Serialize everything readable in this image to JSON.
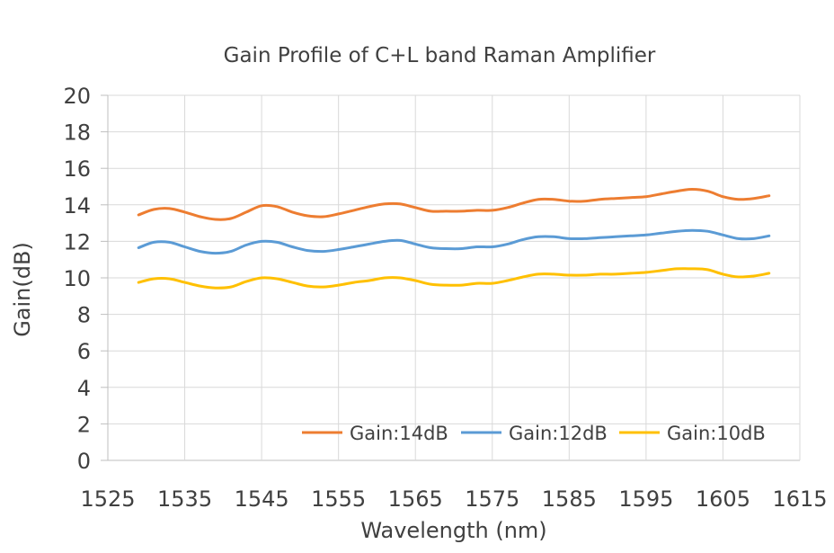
{
  "chart_data": {
    "type": "line",
    "title": "Gain Profile of C+L band Raman Amplifier",
    "xlabel": "Wavelength (nm)",
    "ylabel": "Gain(dB)",
    "xlim": [
      1525,
      1615
    ],
    "ylim": [
      0,
      20
    ],
    "x_ticks": [
      1525,
      1535,
      1545,
      1555,
      1565,
      1575,
      1585,
      1595,
      1605,
      1615
    ],
    "y_ticks": [
      0,
      2,
      4,
      6,
      8,
      10,
      12,
      14,
      16,
      18,
      20
    ],
    "grid": true,
    "legend_position": "bottom-right inside",
    "x": [
      1529,
      1531,
      1533,
      1535,
      1537,
      1539,
      1541,
      1543,
      1545,
      1547,
      1549,
      1551,
      1553,
      1555,
      1557,
      1559,
      1561,
      1563,
      1565,
      1567,
      1569,
      1571,
      1573,
      1575,
      1577,
      1579,
      1581,
      1583,
      1585,
      1587,
      1589,
      1591,
      1593,
      1595,
      1597,
      1599,
      1601,
      1603,
      1605,
      1607,
      1609,
      1611
    ],
    "series": [
      {
        "name": "Gain:14dB",
        "color": "#ED7D31",
        "values": [
          13.45,
          13.75,
          13.8,
          13.6,
          13.35,
          13.2,
          13.25,
          13.6,
          13.95,
          13.9,
          13.6,
          13.4,
          13.35,
          13.5,
          13.7,
          13.9,
          14.05,
          14.05,
          13.85,
          13.65,
          13.65,
          13.65,
          13.7,
          13.7,
          13.85,
          14.1,
          14.3,
          14.3,
          14.2,
          14.2,
          14.3,
          14.35,
          14.4,
          14.45,
          14.6,
          14.75,
          14.85,
          14.75,
          14.45,
          14.3,
          14.35,
          14.5
        ]
      },
      {
        "name": "Gain:12dB",
        "color": "#5B9BD5",
        "values": [
          11.65,
          11.95,
          11.95,
          11.7,
          11.45,
          11.35,
          11.45,
          11.8,
          12.0,
          11.95,
          11.7,
          11.5,
          11.45,
          11.55,
          11.7,
          11.85,
          12.0,
          12.05,
          11.85,
          11.65,
          11.6,
          11.6,
          11.7,
          11.7,
          11.85,
          12.1,
          12.25,
          12.25,
          12.15,
          12.15,
          12.2,
          12.25,
          12.3,
          12.35,
          12.45,
          12.55,
          12.6,
          12.55,
          12.35,
          12.15,
          12.15,
          12.3
        ]
      },
      {
        "name": "Gain:10dB",
        "color": "#FFC000",
        "values": [
          9.75,
          9.95,
          9.95,
          9.75,
          9.55,
          9.45,
          9.5,
          9.8,
          10.0,
          9.95,
          9.75,
          9.55,
          9.5,
          9.6,
          9.75,
          9.85,
          10.0,
          10.0,
          9.85,
          9.65,
          9.6,
          9.6,
          9.7,
          9.7,
          9.85,
          10.05,
          10.2,
          10.2,
          10.15,
          10.15,
          10.2,
          10.2,
          10.25,
          10.3,
          10.4,
          10.5,
          10.5,
          10.45,
          10.2,
          10.05,
          10.1,
          10.25
        ]
      }
    ]
  }
}
